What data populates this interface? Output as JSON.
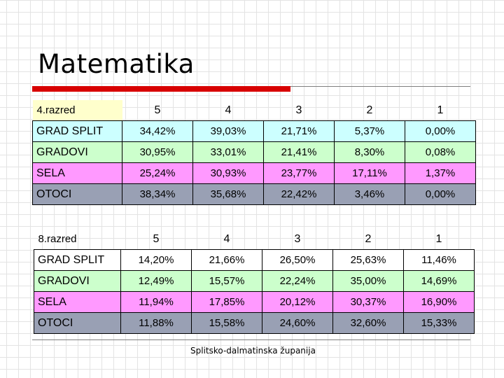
{
  "slide": {
    "title": "Matematika",
    "footer": "Splitsko-dalmatinska županija"
  },
  "colors": {
    "accent_bar": "#d80000",
    "header_label_bg": "#ffffcc",
    "grad_split_bg": "#ccffff",
    "gradovi_bg": "#ccffcc",
    "sela_bg": "#ff99ff",
    "otoci_bg": "#99a0b4",
    "grad_split_8_bg": "#ffffff"
  },
  "table4": {
    "label": "4.razred",
    "grades": [
      "5",
      "4",
      "3",
      "2",
      "1"
    ],
    "rows": [
      {
        "name": "GRAD SPLIT",
        "values": [
          "34,42%",
          "39,03%",
          "21,71%",
          "5,37%",
          "0,00%"
        ]
      },
      {
        "name": "GRADOVI",
        "values": [
          "30,95%",
          "33,01%",
          "21,41%",
          "8,30%",
          "0,08%"
        ]
      },
      {
        "name": "SELA",
        "values": [
          "25,24%",
          "30,93%",
          "23,77%",
          "17,11%",
          "1,37%"
        ]
      },
      {
        "name": "OTOCI",
        "values": [
          "38,34%",
          "35,68%",
          "22,42%",
          "3,46%",
          "0,00%"
        ]
      }
    ]
  },
  "table8": {
    "label": "8.razred",
    "grades": [
      "5",
      "4",
      "3",
      "2",
      "1"
    ],
    "rows": [
      {
        "name": "GRAD SPLIT",
        "values": [
          "14,20%",
          "21,66%",
          "26,50%",
          "25,63%",
          "11,46%"
        ]
      },
      {
        "name": "GRADOVI",
        "values": [
          "12,49%",
          "15,57%",
          "22,24%",
          "35,00%",
          "14,69%"
        ]
      },
      {
        "name": "SELA",
        "values": [
          "11,94%",
          "17,85%",
          "20,12%",
          "30,37%",
          "16,90%"
        ]
      },
      {
        "name": "OTOCI",
        "values": [
          "11,88%",
          "15,58%",
          "24,60%",
          "32,60%",
          "15,33%"
        ]
      }
    ]
  }
}
